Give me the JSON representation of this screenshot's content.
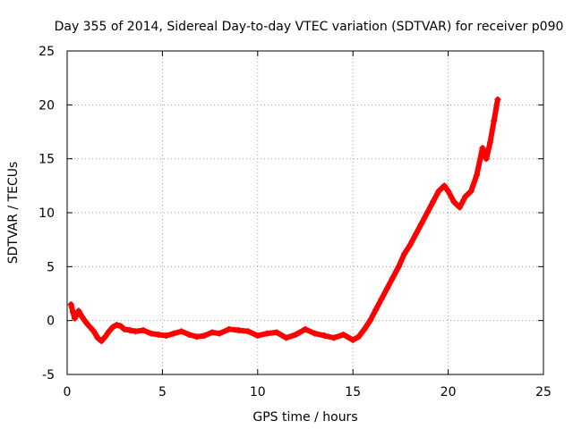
{
  "chart_data": {
    "type": "scatter",
    "title": "Day 355 of 2014, Sidereal Day-to-day VTEC variation (SDTVAR) for receiver p090",
    "xlabel": "GPS time / hours",
    "ylabel": "SDTVAR / TECUs",
    "xlim": [
      0,
      25
    ],
    "ylim": [
      -5,
      25
    ],
    "xticks": [
      0,
      5,
      10,
      15,
      20,
      25
    ],
    "yticks": [
      -5,
      0,
      5,
      10,
      15,
      20,
      25
    ],
    "grid": true,
    "marker": "+",
    "series": [
      {
        "name": "SDTVAR",
        "color": "#ff0000",
        "x": [
          0.2,
          0.3,
          0.4,
          0.5,
          0.6,
          0.8,
          1.0,
          1.2,
          1.4,
          1.6,
          1.8,
          2.0,
          2.2,
          2.4,
          2.6,
          2.8,
          3.0,
          3.3,
          3.6,
          4.0,
          4.4,
          4.8,
          5.2,
          5.6,
          6.0,
          6.4,
          6.8,
          7.2,
          7.6,
          8.0,
          8.5,
          9.0,
          9.5,
          10.0,
          10.5,
          11.0,
          11.5,
          12.0,
          12.5,
          13.0,
          13.5,
          14.0,
          14.5,
          15.0,
          15.3,
          15.6,
          15.9,
          16.2,
          16.5,
          16.8,
          17.1,
          17.4,
          17.7,
          18.0,
          18.3,
          18.6,
          18.9,
          19.2,
          19.5,
          19.8,
          20.0,
          20.3,
          20.6,
          20.9,
          21.2,
          21.5,
          21.8,
          22.0,
          22.2,
          22.4,
          22.6
        ],
        "y": [
          1.5,
          0.8,
          0.2,
          0.5,
          0.9,
          0.3,
          -0.2,
          -0.6,
          -1.0,
          -1.6,
          -1.9,
          -1.5,
          -1.0,
          -0.6,
          -0.4,
          -0.5,
          -0.8,
          -0.9,
          -1.0,
          -0.9,
          -1.2,
          -1.3,
          -1.4,
          -1.2,
          -1.0,
          -1.3,
          -1.5,
          -1.4,
          -1.1,
          -1.2,
          -0.8,
          -0.9,
          -1.0,
          -1.4,
          -1.2,
          -1.1,
          -1.6,
          -1.3,
          -0.8,
          -1.2,
          -1.4,
          -1.6,
          -1.3,
          -1.8,
          -1.5,
          -0.8,
          0.0,
          1.0,
          2.0,
          3.0,
          4.0,
          5.0,
          6.2,
          7.0,
          8.0,
          9.0,
          10.0,
          11.0,
          12.0,
          12.5,
          12.0,
          11.0,
          10.5,
          11.5,
          12.0,
          13.5,
          16.0,
          15.0,
          16.5,
          18.5,
          20.5
        ]
      }
    ]
  }
}
